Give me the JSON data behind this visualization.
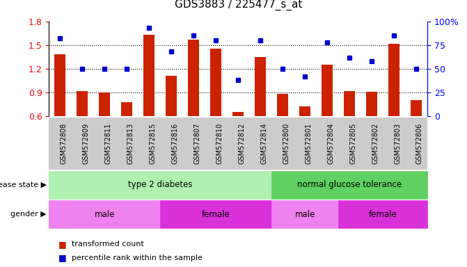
{
  "title": "GDS3883 / 225477_s_at",
  "samples": [
    "GSM572808",
    "GSM572809",
    "GSM572811",
    "GSM572813",
    "GSM572815",
    "GSM572816",
    "GSM572807",
    "GSM572810",
    "GSM572812",
    "GSM572814",
    "GSM572800",
    "GSM572801",
    "GSM572804",
    "GSM572805",
    "GSM572802",
    "GSM572803",
    "GSM572806"
  ],
  "bar_values": [
    1.38,
    0.92,
    0.9,
    0.78,
    1.63,
    1.11,
    1.57,
    1.45,
    0.65,
    1.35,
    0.88,
    0.72,
    1.25,
    0.92,
    0.91,
    1.52,
    0.8
  ],
  "dot_values": [
    82,
    50,
    50,
    50,
    93,
    68,
    85,
    80,
    38,
    80,
    50,
    42,
    78,
    62,
    58,
    85,
    50
  ],
  "bar_color": "#CC2200",
  "dot_color": "#0000CC",
  "ylim_left": [
    0.6,
    1.8
  ],
  "ylim_right": [
    0,
    100
  ],
  "yticks_left": [
    0.6,
    0.9,
    1.2,
    1.5,
    1.8
  ],
  "yticks_right": [
    0,
    25,
    50,
    75,
    100
  ],
  "ytick_labels_right": [
    "0",
    "25",
    "50",
    "75",
    "100%"
  ],
  "hlines": [
    0.9,
    1.2,
    1.5
  ],
  "ds_groups": [
    {
      "label": "type 2 diabetes",
      "start": 0,
      "end": 10,
      "color": "#B0F0B0"
    },
    {
      "label": "normal glucose tolerance",
      "start": 10,
      "end": 17,
      "color": "#60D060"
    }
  ],
  "gender_groups": [
    {
      "label": "male",
      "start": 0,
      "end": 5,
      "color": "#EE82EE"
    },
    {
      "label": "female",
      "start": 5,
      "end": 10,
      "color": "#DA30DA"
    },
    {
      "label": "male",
      "start": 10,
      "end": 13,
      "color": "#EE82EE"
    },
    {
      "label": "female",
      "start": 13,
      "end": 17,
      "color": "#DA30DA"
    }
  ],
  "xlim": [
    -0.5,
    16.5
  ],
  "n": 17,
  "tick_label_color": "#333333",
  "gray_band_color": "#CCCCCC",
  "background_color": "#FFFFFF"
}
